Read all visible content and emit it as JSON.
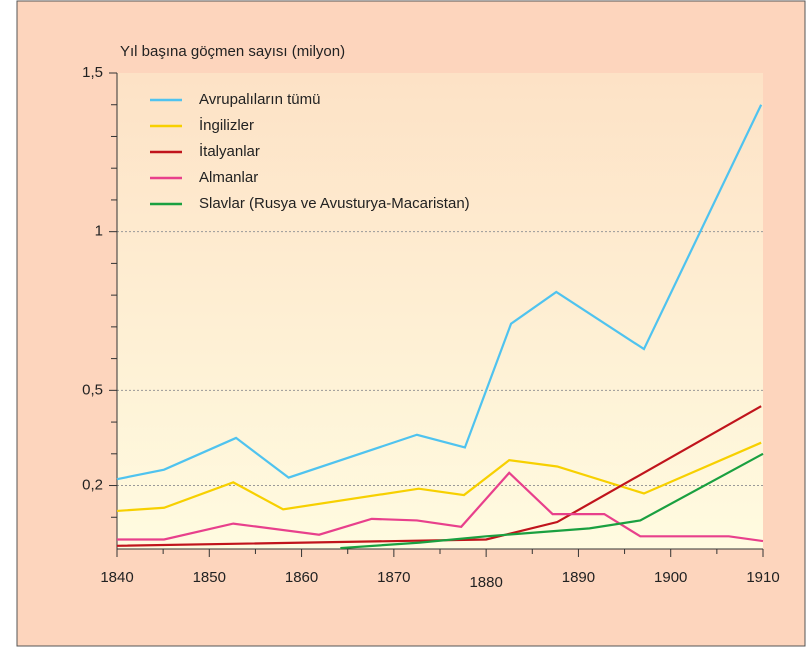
{
  "chart_data": {
    "type": "line",
    "ylabel": "Yıl başına göçmen sayısı (milyon)",
    "xlim": [
      1840,
      1910
    ],
    "xticks": [
      1840,
      1850,
      1860,
      1870,
      1880,
      1890,
      1900,
      1910
    ],
    "xminor": [
      1845,
      1855,
      1865,
      1875,
      1885,
      1895,
      1905
    ],
    "ylim": [
      0,
      1.5
    ],
    "yticks": [
      {
        "value": 0.2,
        "label": "0,2"
      },
      {
        "value": 0.5,
        "label": "0,5"
      },
      1,
      {
        "value": 1.5,
        "label": "1,5"
      }
    ],
    "yminor": [
      0.1,
      0.3,
      0.4,
      0.6,
      0.7,
      0.8,
      0.9,
      1.1,
      1.2,
      1.3,
      1.4
    ],
    "grid": true,
    "legend": "upper left",
    "series": [
      {
        "name": "Avrupalıların tümü",
        "color": "#4fc3ef",
        "x": [
          1840,
          1845.1,
          1852.9,
          1858.6,
          1872.5,
          1877.7,
          1882.7,
          1887.6,
          1897.1,
          1909.8
        ],
        "values": [
          0.22,
          0.25,
          0.35,
          0.225,
          0.36,
          0.32,
          0.71,
          0.81,
          0.63,
          1.4
        ]
      },
      {
        "name": "İngilizler",
        "color": "#f7d000",
        "x": [
          1840,
          1845.1,
          1852.6,
          1858,
          1872.7,
          1877.6,
          1882.5,
          1887.7,
          1897.1,
          1909.8
        ],
        "values": [
          0.12,
          0.13,
          0.21,
          0.125,
          0.19,
          0.17,
          0.28,
          0.26,
          0.175,
          0.335
        ]
      },
      {
        "name": "İtalyanlar",
        "color": "#c0141c",
        "x": [
          1840,
          1880,
          1887.7,
          1909.8
        ],
        "values": [
          0.01,
          0.03,
          0.085,
          0.45
        ]
      },
      {
        "name": "Almanlar",
        "color": "#e8408c",
        "x": [
          1840,
          1845.1,
          1852.6,
          1861.9,
          1867.6,
          1872.5,
          1877.3,
          1882.5,
          1887.2,
          1892.8,
          1896.7,
          1906.3,
          1910
        ],
        "values": [
          0.03,
          0.03,
          0.08,
          0.045,
          0.095,
          0.09,
          0.07,
          0.24,
          0.11,
          0.11,
          0.04,
          0.04,
          0.025
        ]
      },
      {
        "name": "Slavlar (Rusya ve Avusturya-Macaristan)",
        "color": "#1aa040",
        "x": [
          1864.2,
          1872.8,
          1880,
          1891.2,
          1896.7,
          1910
        ],
        "values": [
          0.003,
          0.02,
          0.04,
          0.065,
          0.09,
          0.3
        ]
      }
    ]
  }
}
